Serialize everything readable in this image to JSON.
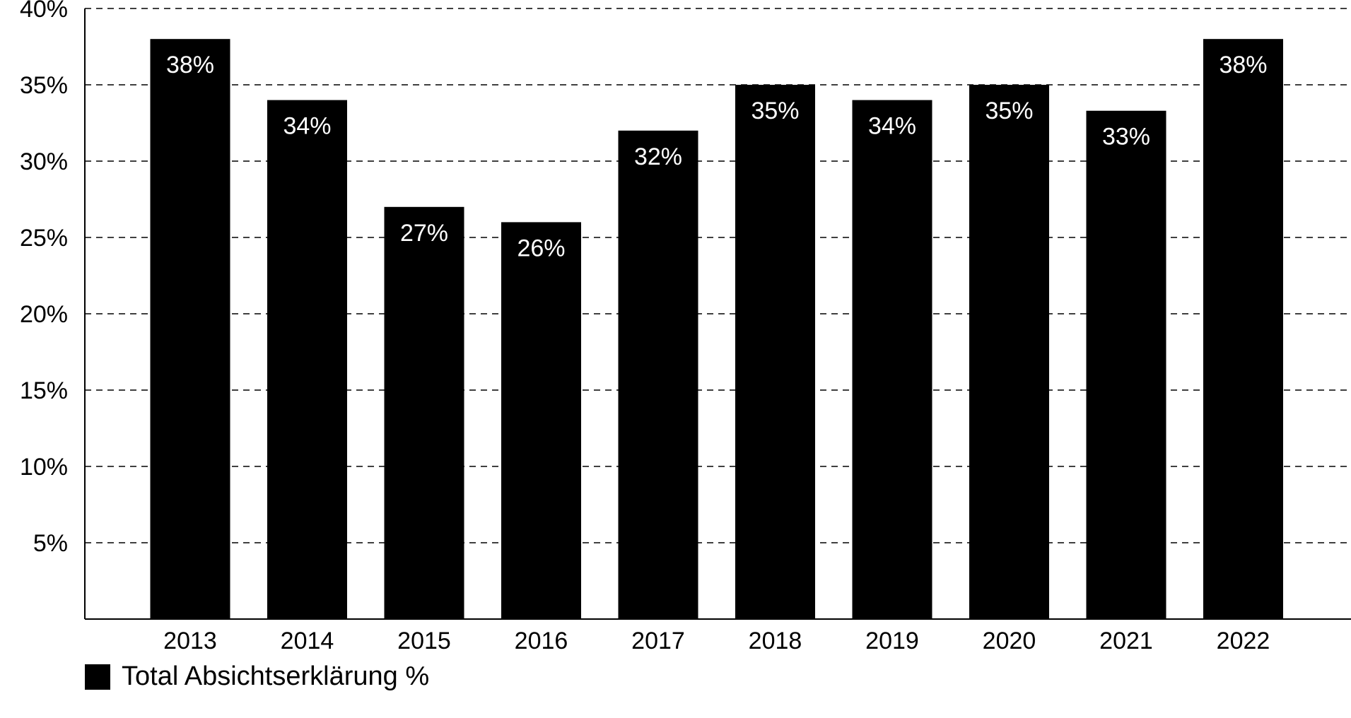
{
  "chart_data": {
    "type": "bar",
    "categories": [
      "2013",
      "2014",
      "2015",
      "2016",
      "2017",
      "2018",
      "2019",
      "2020",
      "2021",
      "2022"
    ],
    "series": [
      {
        "name": "Total Absichtserklärung %",
        "values": [
          38,
          34,
          27,
          26,
          32,
          35,
          34,
          35,
          33.3,
          38
        ],
        "data_labels": [
          "38%",
          "34%",
          "27%",
          "26%",
          "32%",
          "35%",
          "34%",
          "35%",
          "33%",
          "38%"
        ]
      }
    ],
    "ylim": [
      0,
      40
    ],
    "yticks": [
      5,
      10,
      15,
      20,
      25,
      30,
      35,
      40
    ],
    "ytick_labels": [
      "5%",
      "10%",
      "15%",
      "20%",
      "25%",
      "30%",
      "35%",
      "40%"
    ],
    "grid": "horizontal-dashed",
    "legend_position": "bottom-left",
    "colors": {
      "bar": "#000000",
      "label": "#ffffff",
      "grid": "#000000"
    }
  }
}
